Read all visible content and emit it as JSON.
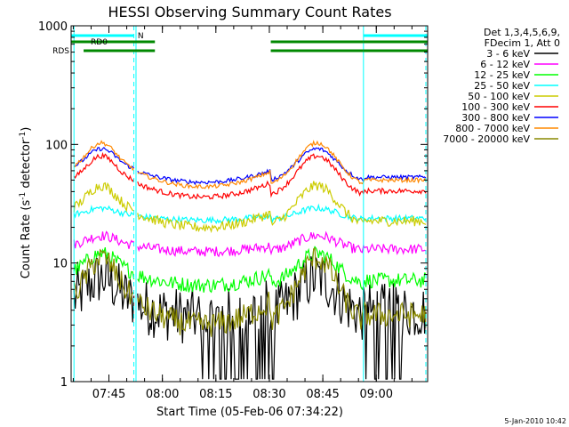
{
  "chart_data": {
    "type": "line",
    "title": "HESSI Observing Summary Count Rates",
    "xlabel": "Start Time (05-Feb-06 07:34:22)",
    "ylabel": "Count Rate (s",
    "ylabel_sup1": "-1",
    "ylabel_mid": " detector",
    "ylabel_sup2": "-1",
    "ylabel_end": ")",
    "yscale": "log",
    "ylim": [
      1,
      1000
    ],
    "xlim_minutes": [
      0,
      100
    ],
    "x_ticks": [
      {
        "label": "07:45",
        "minute": 10.6
      },
      {
        "label": "08:00",
        "minute": 25.6
      },
      {
        "label": "08:15",
        "minute": 40.6
      },
      {
        "label": "08:30",
        "minute": 55.6
      },
      {
        "label": "08:45",
        "minute": 70.6
      },
      {
        "label": "09:00",
        "minute": 85.6
      }
    ],
    "y_ticks": [
      {
        "label": "1",
        "value": 1
      },
      {
        "label": "10",
        "value": 10
      },
      {
        "label": "100",
        "value": 100
      },
      {
        "label": "1000",
        "value": 1000
      }
    ],
    "legend_header": [
      "Det 1,3,4,5,6,9,",
      "FDecim 1, Att 0"
    ],
    "legend_position": "right",
    "series": [
      {
        "name": "3 - 6 keV",
        "color": "#000000",
        "base": 3.5,
        "peak": 7.5,
        "noise": 0.55,
        "gap": true
      },
      {
        "name": "6 - 12 keV",
        "color": "#ff00ff",
        "base": 12.5,
        "peak": 17,
        "noise": 0.1,
        "gap": false
      },
      {
        "name": "12 - 25 keV",
        "color": "#00ff00",
        "base": 6.5,
        "peak": 12,
        "noise": 0.15,
        "gap": false
      },
      {
        "name": "25 - 50 keV",
        "color": "#00ffff",
        "base": 23,
        "peak": 29,
        "noise": 0.06,
        "gap": false
      },
      {
        "name": "50 - 100 keV",
        "color": "#cccc00",
        "base": 20,
        "peak": 45,
        "noise": 0.1,
        "gap": false
      },
      {
        "name": "100 - 300 keV",
        "color": "#ff0000",
        "base": 36,
        "peak": 80,
        "noise": 0.05,
        "gap": false
      },
      {
        "name": "300 - 800 keV",
        "color": "#0000ff",
        "base": 48,
        "peak": 92,
        "noise": 0.04,
        "gap": false
      },
      {
        "name": "800 - 7000 keV",
        "color": "#ff8800",
        "base": 44,
        "peak": 103,
        "noise": 0.04,
        "gap": false
      },
      {
        "name": "7000 - 20000 keV",
        "color": "#888800",
        "base": 3.0,
        "peak": 11,
        "noise": 0.25,
        "gap": false
      }
    ],
    "night_intervals_minutes": [
      [
        0,
        0.8
      ],
      [
        18.2,
        99.5
      ]
    ],
    "flags": [
      {
        "label": "N",
        "color": "#00ffff",
        "segments": [
          [
            0,
            17.5
          ],
          [
            82,
            100
          ]
        ]
      },
      {
        "label": "RD0",
        "color": "#008800",
        "segments": [
          [
            0,
            23.5
          ],
          [
            56,
            82
          ],
          [
            82,
            100
          ]
        ]
      },
      {
        "label": "RDS",
        "color": "#008800",
        "segments": [
          [
            3.5,
            23.5
          ],
          [
            56,
            82
          ],
          [
            82,
            100
          ]
        ]
      }
    ]
  },
  "footer": {
    "date_stamp": "5-Jan-2010 10:42"
  }
}
